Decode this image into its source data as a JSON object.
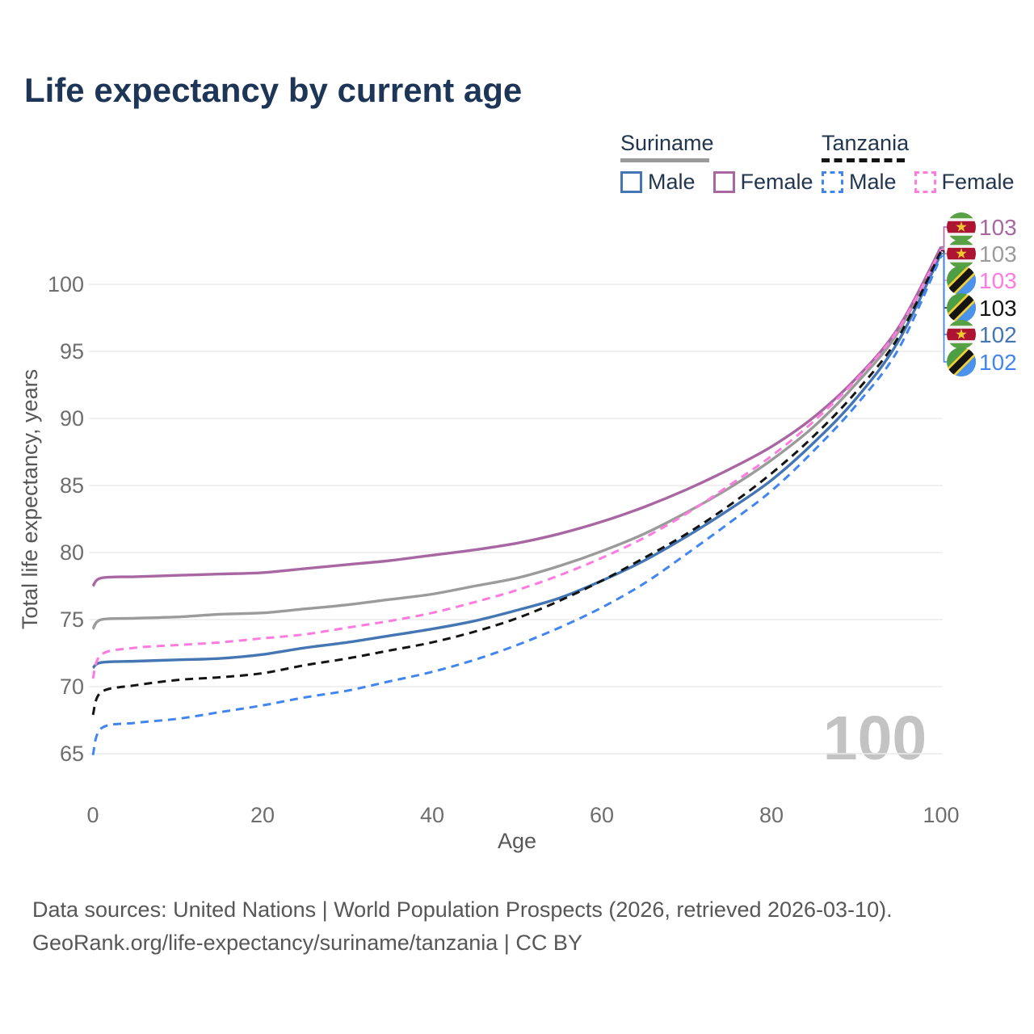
{
  "title": "Life expectancy by current age",
  "legend": {
    "groups": [
      {
        "label": "Suriname",
        "line_style": "solid",
        "line_color": "#9b9b9b",
        "items": [
          {
            "label": "Male",
            "color": "#4576b4",
            "dashed": false
          },
          {
            "label": "Female",
            "color": "#a867a3",
            "dashed": false
          }
        ]
      },
      {
        "label": "Tanzania",
        "line_style": "dashed",
        "line_color": "#141414",
        "items": [
          {
            "label": "Male",
            "color": "#4186f0",
            "dashed": true
          },
          {
            "label": "Female",
            "color": "#ff7bdf",
            "dashed": true
          }
        ]
      }
    ]
  },
  "watermark": "100",
  "footer": {
    "line1": "Data sources: United Nations | World Population Prospects (2026, retrieved 2026-03-10).",
    "line2": "GeoRank.org/life-expectancy/suriname/tanzania | CC BY"
  },
  "chart_data": {
    "type": "line",
    "title": "Life expectancy by current age",
    "xlabel": "Age",
    "ylabel": "Total life expectancy, years",
    "xlim": [
      0,
      100
    ],
    "ylim": [
      63.5,
      104
    ],
    "xticks": [
      0,
      20,
      40,
      60,
      80,
      100
    ],
    "yticks": [
      65,
      70,
      75,
      80,
      85,
      90,
      95,
      100
    ],
    "grid": "horizontal",
    "legend_position": "top-right",
    "x": [
      0,
      1,
      5,
      10,
      15,
      20,
      25,
      30,
      35,
      40,
      45,
      50,
      55,
      60,
      65,
      70,
      75,
      80,
      85,
      90,
      95,
      100
    ],
    "series": [
      {
        "name": "Suriname Female",
        "country": "Suriname",
        "sex": "Female",
        "color": "#a867a3",
        "dashed": false,
        "flag": "suriname",
        "end_label": "103",
        "values": [
          77.5,
          78.1,
          78.2,
          78.3,
          78.4,
          78.5,
          78.8,
          79.1,
          79.4,
          79.8,
          80.2,
          80.7,
          81.4,
          82.3,
          83.4,
          84.7,
          86.2,
          87.9,
          90.1,
          93.0,
          96.8,
          102.8
        ]
      },
      {
        "name": "Suriname Both sexes",
        "country": "Suriname",
        "sex": "Both",
        "color": "#9b9b9b",
        "dashed": false,
        "flag": "suriname",
        "end_label": "103",
        "values": [
          74.3,
          75.0,
          75.1,
          75.2,
          75.4,
          75.5,
          75.8,
          76.1,
          76.5,
          76.9,
          77.5,
          78.1,
          79.0,
          80.1,
          81.4,
          83.0,
          84.8,
          86.9,
          89.4,
          92.6,
          96.5,
          102.7
        ]
      },
      {
        "name": "Tanzania Female",
        "country": "Tanzania",
        "sex": "Female",
        "color": "#ff7bdf",
        "dashed": true,
        "flag": "tanzania",
        "end_label": "103",
        "values": [
          70.6,
          72.4,
          72.9,
          73.1,
          73.3,
          73.6,
          73.9,
          74.4,
          74.9,
          75.5,
          76.3,
          77.2,
          78.3,
          79.6,
          81.1,
          82.9,
          85.0,
          87.2,
          89.8,
          92.9,
          96.7,
          102.6
        ]
      },
      {
        "name": "Tanzania Both sexes",
        "country": "Tanzania",
        "sex": "Both",
        "color": "#141414",
        "dashed": true,
        "flag": "tanzania",
        "end_label": "103",
        "values": [
          67.9,
          69.6,
          70.1,
          70.5,
          70.7,
          71.0,
          71.6,
          72.1,
          72.7,
          73.3,
          74.1,
          75.1,
          76.4,
          77.9,
          79.6,
          81.4,
          83.5,
          85.9,
          88.7,
          92.0,
          96.1,
          102.5
        ]
      },
      {
        "name": "Suriname Male",
        "country": "Suriname",
        "sex": "Male",
        "color": "#4576b4",
        "dashed": false,
        "flag": "suriname",
        "end_label": "102",
        "values": [
          71.4,
          71.8,
          71.9,
          72.0,
          72.1,
          72.4,
          72.9,
          73.3,
          73.8,
          74.3,
          74.9,
          75.7,
          76.6,
          77.9,
          79.4,
          81.2,
          83.2,
          85.4,
          88.2,
          91.5,
          95.8,
          102.3
        ]
      },
      {
        "name": "Tanzania Male",
        "country": "Tanzania",
        "sex": "Male",
        "color": "#4186f0",
        "dashed": true,
        "flag": "tanzania",
        "end_label": "102",
        "values": [
          64.9,
          66.9,
          67.3,
          67.6,
          68.1,
          68.6,
          69.2,
          69.7,
          70.4,
          71.1,
          72.0,
          73.1,
          74.4,
          75.9,
          77.7,
          79.9,
          82.2,
          84.6,
          87.6,
          91.0,
          95.2,
          102.1
        ]
      }
    ]
  }
}
